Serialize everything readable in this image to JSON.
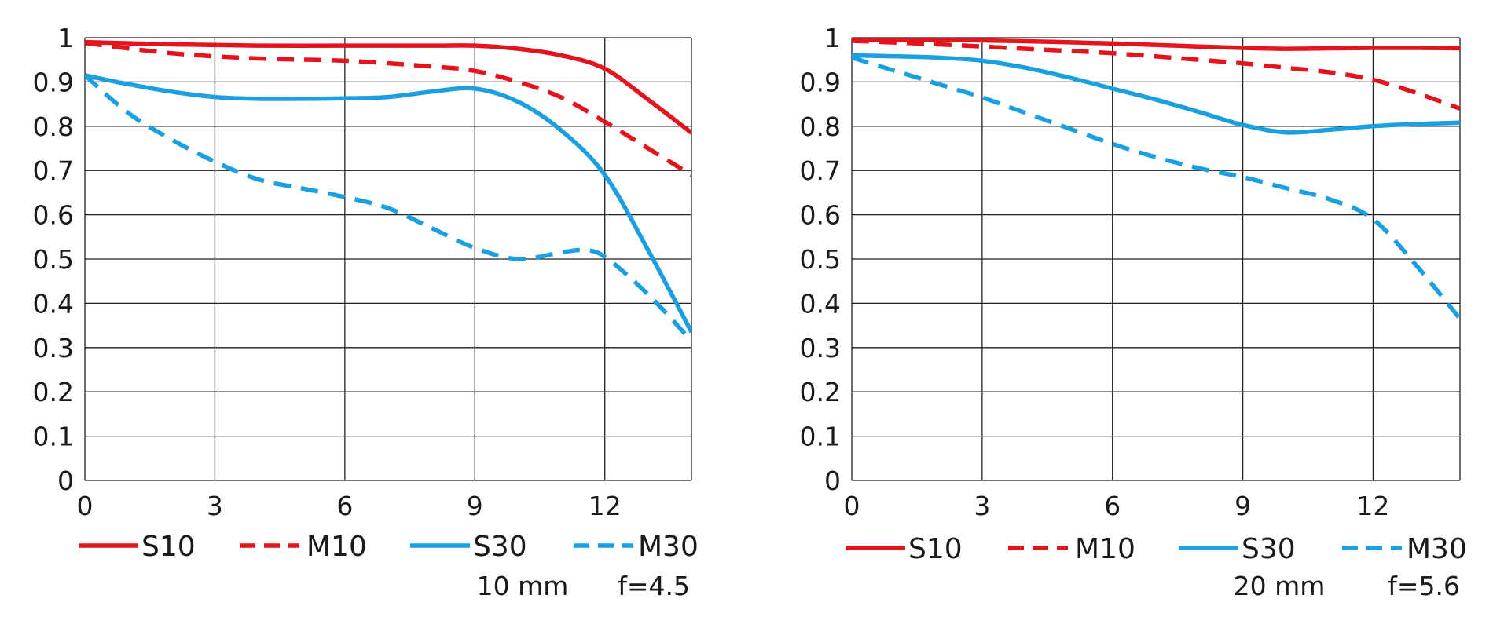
{
  "chart_data": [
    {
      "type": "line",
      "caption_focal": "10 mm",
      "caption_aperture": "f=4.5",
      "xlim": [
        0,
        14
      ],
      "ylim": [
        0,
        1
      ],
      "x_ticks": [
        "0",
        "3",
        "6",
        "9",
        "12"
      ],
      "y_ticks": [
        "0",
        "0.1",
        "0.2",
        "0.3",
        "0.4",
        "0.5",
        "0.6",
        "0.7",
        "0.8",
        "0.9",
        "1"
      ],
      "grid": true,
      "series": [
        {
          "name": "S10",
          "color": "#e3141e",
          "style": "solid",
          "x": [
            0,
            2,
            4,
            6,
            8,
            9,
            10,
            11,
            12,
            13,
            14
          ],
          "values": [
            0.99,
            0.985,
            0.982,
            0.982,
            0.982,
            0.982,
            0.975,
            0.96,
            0.93,
            0.86,
            0.785
          ]
        },
        {
          "name": "M10",
          "color": "#e3141e",
          "style": "dashed",
          "x": [
            0,
            2,
            4,
            6,
            8,
            9,
            10,
            11,
            12,
            13,
            14
          ],
          "values": [
            0.988,
            0.965,
            0.953,
            0.948,
            0.935,
            0.925,
            0.9,
            0.865,
            0.81,
            0.75,
            0.69
          ]
        },
        {
          "name": "S30",
          "color": "#1a9fe0",
          "style": "solid",
          "x": [
            0,
            1,
            2,
            3,
            4,
            5,
            6,
            7,
            8,
            9,
            10,
            11,
            12,
            13,
            14
          ],
          "values": [
            0.915,
            0.895,
            0.878,
            0.866,
            0.862,
            0.862,
            0.863,
            0.866,
            0.878,
            0.885,
            0.855,
            0.79,
            0.69,
            0.52,
            0.335
          ]
        },
        {
          "name": "M30",
          "color": "#1a9fe0",
          "style": "dashed",
          "x": [
            0,
            1,
            2,
            3,
            4,
            5,
            6,
            7,
            8,
            9,
            10,
            11,
            11.5,
            12,
            13,
            14
          ],
          "values": [
            0.915,
            0.83,
            0.77,
            0.72,
            0.68,
            0.66,
            0.64,
            0.615,
            0.57,
            0.525,
            0.5,
            0.515,
            0.52,
            0.505,
            0.42,
            0.315
          ]
        }
      ]
    },
    {
      "type": "line",
      "caption_focal": "20 mm",
      "caption_aperture": "f=5.6",
      "xlim": [
        0,
        14
      ],
      "ylim": [
        0,
        1
      ],
      "x_ticks": [
        "0",
        "3",
        "6",
        "9",
        "12"
      ],
      "y_ticks": [
        "0",
        "0.1",
        "0.2",
        "0.3",
        "0.4",
        "0.5",
        "0.6",
        "0.7",
        "0.8",
        "0.9",
        "1"
      ],
      "grid": true,
      "series": [
        {
          "name": "S10",
          "color": "#e3141e",
          "style": "solid",
          "x": [
            0,
            2,
            4,
            6,
            8,
            9,
            10,
            11,
            12,
            13,
            14
          ],
          "values": [
            0.995,
            0.995,
            0.992,
            0.987,
            0.98,
            0.977,
            0.975,
            0.976,
            0.977,
            0.977,
            0.976
          ]
        },
        {
          "name": "M10",
          "color": "#e3141e",
          "style": "dashed",
          "x": [
            0,
            2,
            4,
            6,
            8,
            9,
            10,
            11,
            12,
            13,
            14
          ],
          "values": [
            0.993,
            0.985,
            0.975,
            0.965,
            0.95,
            0.942,
            0.932,
            0.922,
            0.905,
            0.875,
            0.84
          ]
        },
        {
          "name": "S30",
          "color": "#1a9fe0",
          "style": "solid",
          "x": [
            0,
            1,
            2,
            3,
            4,
            5,
            6,
            7,
            8,
            9,
            10,
            11,
            12,
            13,
            14
          ],
          "values": [
            0.96,
            0.958,
            0.955,
            0.948,
            0.932,
            0.91,
            0.885,
            0.86,
            0.832,
            0.803,
            0.786,
            0.792,
            0.8,
            0.805,
            0.808
          ]
        },
        {
          "name": "M30",
          "color": "#1a9fe0",
          "style": "dashed",
          "x": [
            0,
            1,
            2,
            3,
            4,
            5,
            6,
            7,
            8,
            9,
            10,
            11,
            12,
            13,
            14
          ],
          "values": [
            0.955,
            0.925,
            0.895,
            0.865,
            0.83,
            0.795,
            0.76,
            0.73,
            0.705,
            0.685,
            0.66,
            0.635,
            0.59,
            0.485,
            0.365
          ]
        }
      ]
    }
  ]
}
